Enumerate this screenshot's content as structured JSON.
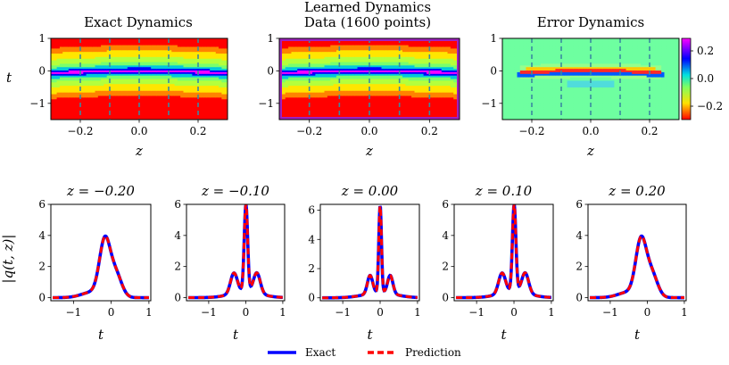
{
  "chart_data": {
    "top_row": {
      "type": "heatmap",
      "x_label": "z",
      "y_label": "t",
      "x_ticks": [
        "−0.2",
        "0.0",
        "0.2"
      ],
      "y_ticks": [
        "1",
        "0",
        "−1"
      ],
      "xlim": [
        -0.3,
        0.3
      ],
      "ylim": [
        -1.5,
        1.0
      ],
      "panels": [
        {
          "title": "Exact Dynamics",
          "kind": "field"
        },
        {
          "title": "Learned Dynamics",
          "subtitle": "Data (1600 points)",
          "kind": "field",
          "sampled": true
        },
        {
          "title": "Error Dynamics",
          "kind": "error"
        }
      ],
      "colorbar": {
        "ticks": [
          "0.2",
          "0.0",
          "−0.2"
        ],
        "range": [
          -0.3,
          0.3
        ]
      }
    },
    "bottom_row": {
      "type": "line",
      "x_label": "t",
      "y_label": "|q(t, z)|",
      "x_ticks": [
        "−1",
        "0",
        "1"
      ],
      "xlim": [
        -1.6,
        1.05
      ],
      "y_ticks": [
        "0",
        "2",
        "4",
        "6"
      ],
      "panels": [
        {
          "title": "z = −0.20",
          "z": -0.2,
          "peak": 3.7,
          "ylim": [
            -0.2,
            6
          ]
        },
        {
          "title": "z = −0.10",
          "z": -0.1,
          "peak": 5.7,
          "ylim": [
            -0.2,
            6
          ]
        },
        {
          "title": "z = 0.00",
          "z": 0.0,
          "peak": 6.0,
          "ylim": [
            -0.2,
            6.4
          ]
        },
        {
          "title": "z = 0.10",
          "z": 0.1,
          "peak": 5.7,
          "ylim": [
            -0.2,
            6
          ]
        },
        {
          "title": "z = 0.20",
          "z": 0.2,
          "peak": 3.7,
          "ylim": [
            -0.2,
            6
          ]
        }
      ],
      "legend": {
        "placement": "bottom-center",
        "entries": [
          "Exact",
          "Prediction"
        ]
      },
      "series_colors": {
        "exact": "#0000ff",
        "prediction": "#ff0000"
      }
    }
  }
}
